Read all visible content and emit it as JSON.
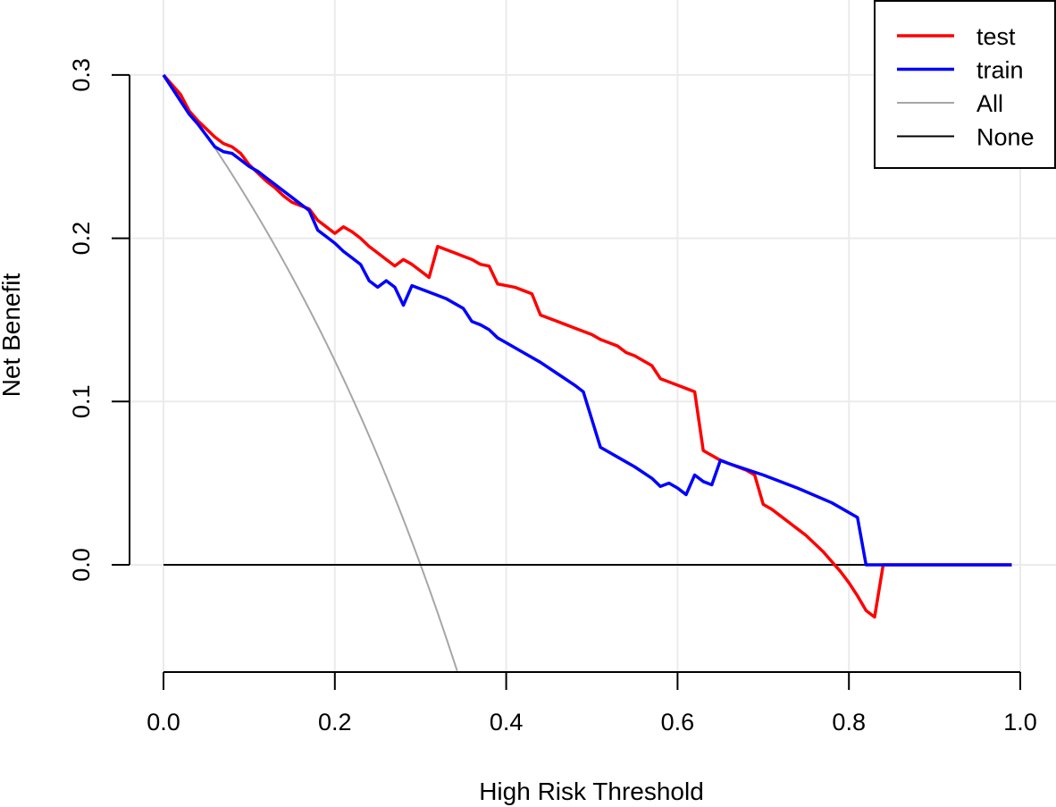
{
  "chart_data": {
    "type": "line",
    "title": "",
    "xlabel": "High Risk Threshold",
    "ylabel": "Net Benefit",
    "xlim": [
      0,
      1
    ],
    "ylim": [
      -0.065,
      0.33
    ],
    "grid": true,
    "x_ticks": [
      {
        "value": 0.0,
        "label": "0.0"
      },
      {
        "value": 0.2,
        "label": "0.2"
      },
      {
        "value": 0.4,
        "label": "0.4"
      },
      {
        "value": 0.6,
        "label": "0.6"
      },
      {
        "value": 0.8,
        "label": "0.8"
      },
      {
        "value": 1.0,
        "label": "1.0"
      }
    ],
    "y_ticks": [
      {
        "value": 0.0,
        "label": "0.0"
      },
      {
        "value": 0.1,
        "label": "0.1"
      },
      {
        "value": 0.2,
        "label": "0.2"
      },
      {
        "value": 0.3,
        "label": "0.3"
      }
    ],
    "legend_position": "top-right",
    "series": [
      {
        "name": "test",
        "color": "#ff0000",
        "x": [
          0.0,
          0.02,
          0.03,
          0.04,
          0.05,
          0.06,
          0.07,
          0.08,
          0.09,
          0.1,
          0.11,
          0.12,
          0.13,
          0.14,
          0.15,
          0.16,
          0.17,
          0.18,
          0.19,
          0.2,
          0.21,
          0.22,
          0.23,
          0.24,
          0.25,
          0.26,
          0.27,
          0.28,
          0.29,
          0.3,
          0.31,
          0.32,
          0.33,
          0.34,
          0.35,
          0.36,
          0.37,
          0.38,
          0.39,
          0.4,
          0.41,
          0.42,
          0.43,
          0.44,
          0.45,
          0.46,
          0.47,
          0.48,
          0.49,
          0.5,
          0.51,
          0.52,
          0.53,
          0.54,
          0.55,
          0.56,
          0.57,
          0.58,
          0.59,
          0.6,
          0.61,
          0.62,
          0.63,
          0.64,
          0.65,
          0.66,
          0.67,
          0.68,
          0.69,
          0.7,
          0.71,
          0.72,
          0.73,
          0.74,
          0.75,
          0.76,
          0.77,
          0.78,
          0.79,
          0.8,
          0.81,
          0.82,
          0.83,
          0.84,
          0.85,
          0.9,
          0.95,
          0.99
        ],
        "y": [
          0.3,
          0.288,
          0.278,
          0.272,
          0.267,
          0.262,
          0.258,
          0.256,
          0.252,
          0.245,
          0.24,
          0.235,
          0.231,
          0.226,
          0.222,
          0.22,
          0.218,
          0.211,
          0.207,
          0.203,
          0.207,
          0.204,
          0.2,
          0.195,
          0.191,
          0.187,
          0.183,
          0.187,
          0.184,
          0.18,
          0.176,
          0.195,
          0.193,
          0.191,
          0.189,
          0.187,
          0.184,
          0.183,
          0.172,
          0.171,
          0.17,
          0.168,
          0.166,
          0.153,
          0.151,
          0.149,
          0.147,
          0.145,
          0.143,
          0.141,
          0.138,
          0.136,
          0.134,
          0.13,
          0.128,
          0.125,
          0.122,
          0.114,
          0.112,
          0.11,
          0.108,
          0.106,
          0.07,
          0.067,
          0.064,
          0.062,
          0.06,
          0.058,
          0.055,
          0.037,
          0.034,
          0.03,
          0.026,
          0.022,
          0.018,
          0.013,
          0.008,
          0.002,
          -0.004,
          -0.011,
          -0.019,
          -0.028,
          -0.032,
          0.0,
          0.0,
          0.0,
          0.0,
          0.0
        ]
      },
      {
        "name": "train",
        "color": "#0000ff",
        "x": [
          0.0,
          0.01,
          0.02,
          0.03,
          0.04,
          0.05,
          0.06,
          0.07,
          0.08,
          0.09,
          0.1,
          0.11,
          0.12,
          0.13,
          0.14,
          0.15,
          0.16,
          0.17,
          0.18,
          0.19,
          0.2,
          0.21,
          0.22,
          0.23,
          0.24,
          0.25,
          0.26,
          0.27,
          0.28,
          0.29,
          0.3,
          0.31,
          0.32,
          0.33,
          0.34,
          0.35,
          0.36,
          0.37,
          0.38,
          0.39,
          0.4,
          0.42,
          0.44,
          0.46,
          0.48,
          0.49,
          0.51,
          0.53,
          0.55,
          0.57,
          0.58,
          0.59,
          0.6,
          0.61,
          0.62,
          0.63,
          0.64,
          0.65,
          0.66,
          0.7,
          0.74,
          0.78,
          0.81,
          0.82,
          0.85,
          0.9,
          0.95,
          0.99
        ],
        "y": [
          0.3,
          0.292,
          0.284,
          0.276,
          0.27,
          0.263,
          0.256,
          0.253,
          0.252,
          0.248,
          0.244,
          0.241,
          0.237,
          0.233,
          0.229,
          0.225,
          0.221,
          0.217,
          0.205,
          0.201,
          0.197,
          0.192,
          0.188,
          0.184,
          0.174,
          0.17,
          0.174,
          0.17,
          0.159,
          0.171,
          0.169,
          0.167,
          0.165,
          0.163,
          0.16,
          0.157,
          0.149,
          0.147,
          0.144,
          0.139,
          0.136,
          0.13,
          0.124,
          0.117,
          0.11,
          0.106,
          0.072,
          0.066,
          0.06,
          0.053,
          0.048,
          0.05,
          0.047,
          0.043,
          0.055,
          0.051,
          0.049,
          0.064,
          0.062,
          0.055,
          0.047,
          0.038,
          0.029,
          0.0,
          0.0,
          0.0,
          0.0,
          0.0
        ]
      },
      {
        "name": "All",
        "color": "#a6a6a6",
        "prevalence": 0.3,
        "formula": "0.3 - 0.7 * t / (1 - t)"
      },
      {
        "name": "None",
        "color": "#000000",
        "x": [
          0.0,
          0.99
        ],
        "y": [
          0.0,
          0.0
        ]
      }
    ]
  }
}
